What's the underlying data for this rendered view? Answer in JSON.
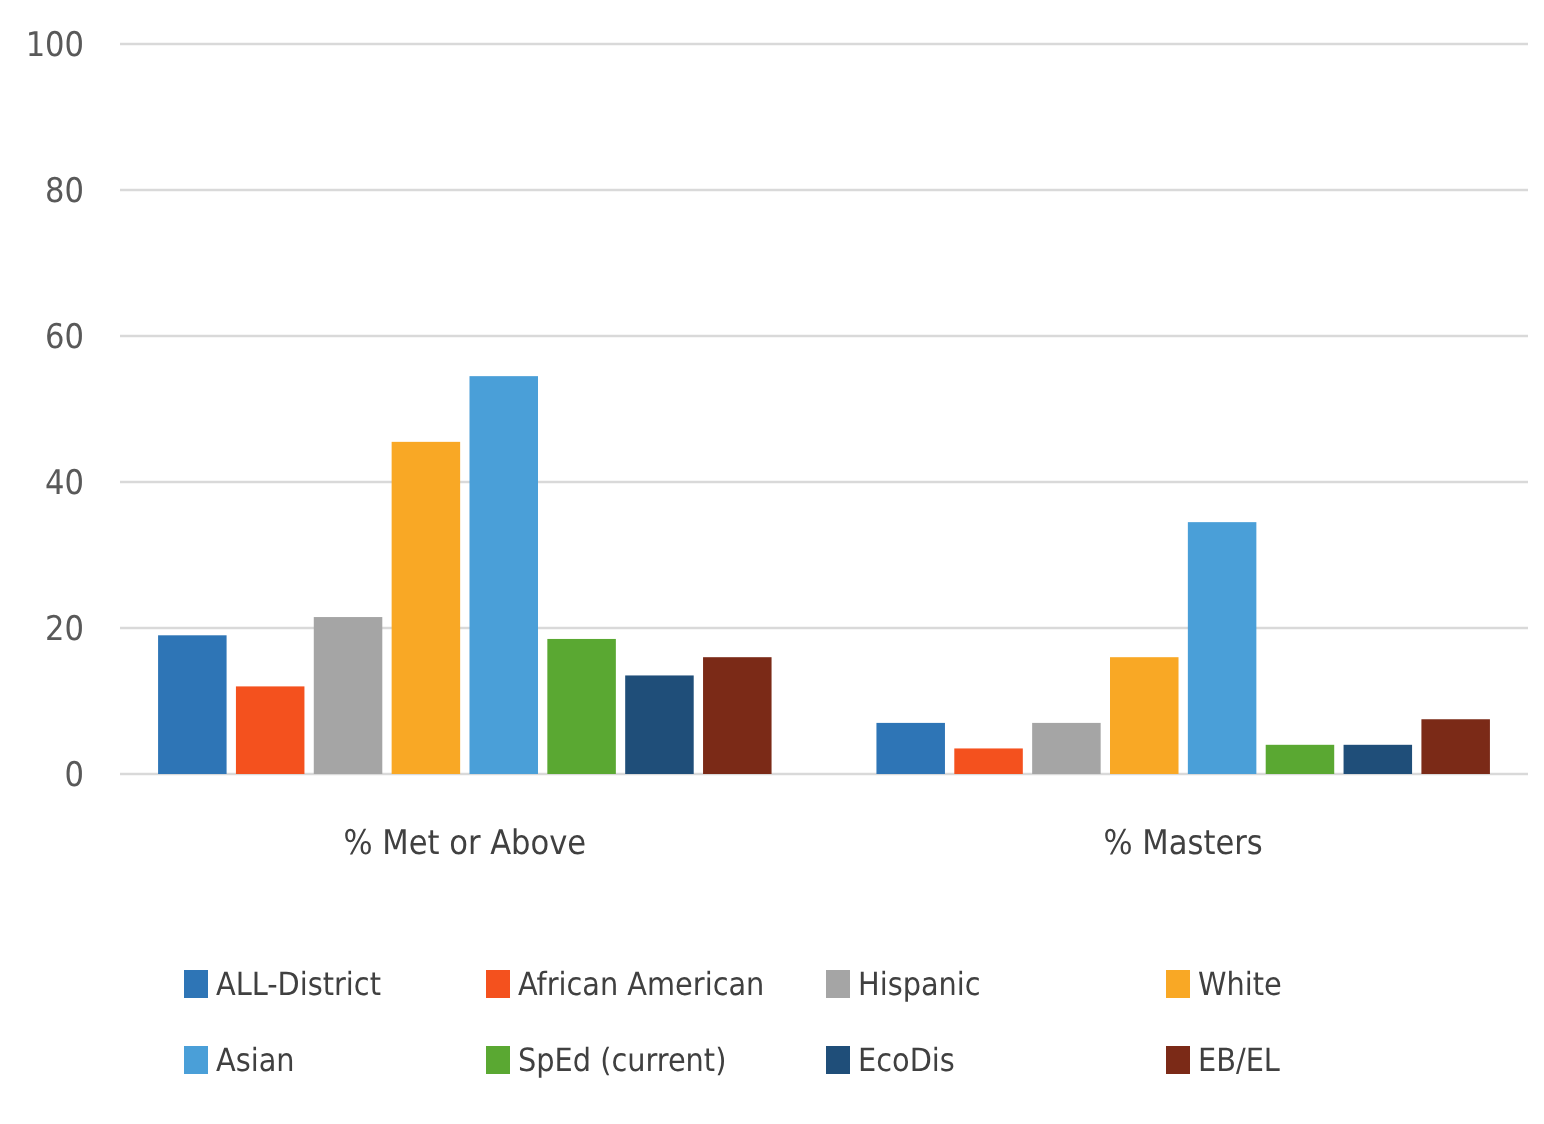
{
  "chart_data": {
    "type": "bar",
    "categories": [
      "% Met or Above",
      "% Masters"
    ],
    "series": [
      {
        "name": "ALL-District",
        "color": "#2e75b6",
        "values": [
          19,
          7
        ]
      },
      {
        "name": "African American",
        "color": "#f4511e",
        "values": [
          12,
          3.5
        ]
      },
      {
        "name": "Hispanic",
        "color": "#a5a5a5",
        "values": [
          21.5,
          7
        ]
      },
      {
        "name": "White",
        "color": "#f9a825",
        "values": [
          45.5,
          16
        ]
      },
      {
        "name": "Asian",
        "color": "#4a9fd8",
        "values": [
          54.5,
          34.5
        ]
      },
      {
        "name": "SpEd (current)",
        "color": "#5aa832",
        "values": [
          18.5,
          4
        ]
      },
      {
        "name": "EcoDis",
        "color": "#1f4e79",
        "values": [
          13.5,
          4
        ]
      },
      {
        "name": "EB/EL",
        "color": "#7b2a17",
        "values": [
          16,
          7.5
        ]
      }
    ],
    "ylim": [
      0,
      100
    ],
    "yticks": [
      0,
      20,
      40,
      60,
      80,
      100
    ],
    "grid": "y",
    "legend": "bottom"
  }
}
